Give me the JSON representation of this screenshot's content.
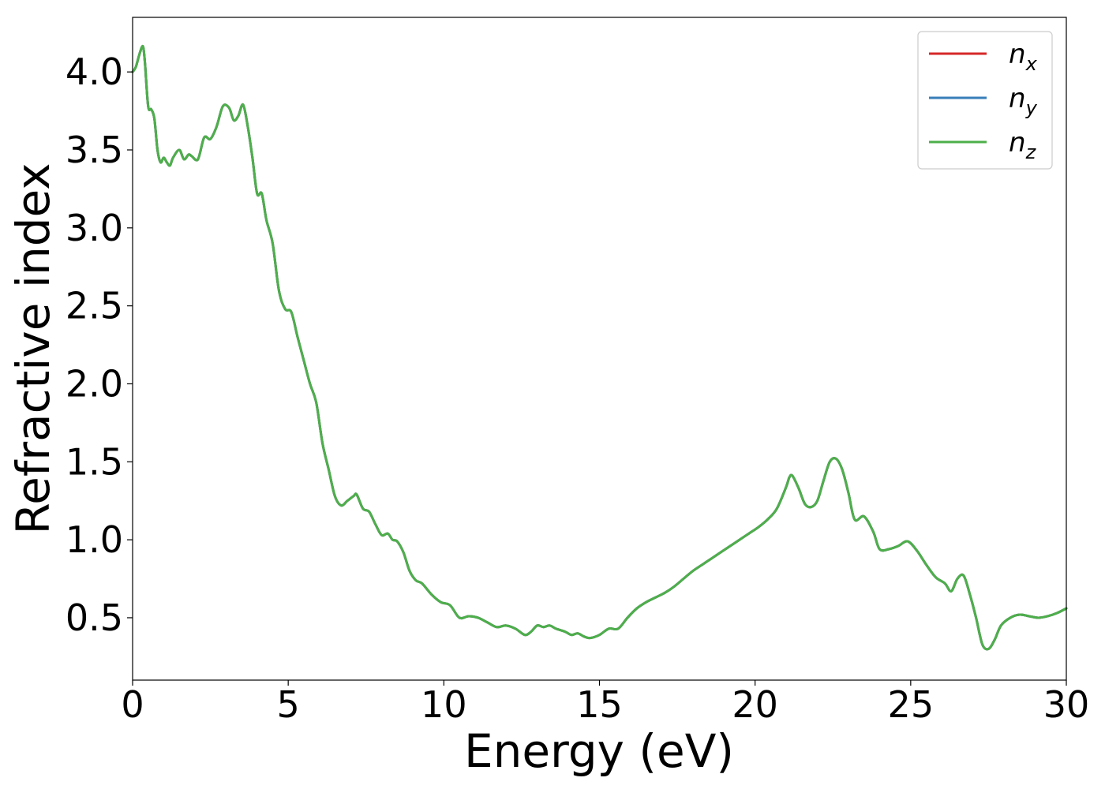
{
  "chart_data": {
    "type": "line",
    "title": "",
    "xlabel": "Energy (eV)",
    "ylabel": "Refractive index",
    "xlim": [
      0,
      30
    ],
    "ylim": [
      0.1,
      4.35
    ],
    "xticks": [
      0,
      5,
      10,
      15,
      20,
      25,
      30
    ],
    "xtick_labels": [
      "0",
      "5",
      "10",
      "15",
      "20",
      "25",
      "30"
    ],
    "yticks": [
      0.5,
      1.0,
      1.5,
      2.0,
      2.5,
      3.0,
      3.5,
      4.0
    ],
    "ytick_labels": [
      "0.5",
      "1.0",
      "1.5",
      "2.0",
      "2.5",
      "3.0",
      "3.5",
      "4.0"
    ],
    "grid": false,
    "legend_position": "top-right",
    "x": [
      0.0,
      0.1,
      0.2,
      0.3,
      0.35,
      0.4,
      0.5,
      0.6,
      0.7,
      0.8,
      0.9,
      1.0,
      1.1,
      1.2,
      1.3,
      1.5,
      1.65,
      1.8,
      1.9,
      2.1,
      2.3,
      2.5,
      2.7,
      2.9,
      3.1,
      3.25,
      3.4,
      3.55,
      3.7,
      3.85,
      4.0,
      4.15,
      4.3,
      4.5,
      4.7,
      4.9,
      5.1,
      5.3,
      5.5,
      5.7,
      5.9,
      6.1,
      6.3,
      6.5,
      6.7,
      6.9,
      7.1,
      7.2,
      7.4,
      7.6,
      7.8,
      8.0,
      8.2,
      8.35,
      8.5,
      8.7,
      8.9,
      9.1,
      9.3,
      9.6,
      9.9,
      10.2,
      10.5,
      10.8,
      11.1,
      11.4,
      11.7,
      12.0,
      12.3,
      12.6,
      12.8,
      13.0,
      13.2,
      13.4,
      13.6,
      13.9,
      14.1,
      14.3,
      14.5,
      14.7,
      15.0,
      15.3,
      15.6,
      15.9,
      16.2,
      16.5,
      16.8,
      17.1,
      17.4,
      17.7,
      18.0,
      18.3,
      18.6,
      18.9,
      19.2,
      19.5,
      19.8,
      20.1,
      20.4,
      20.7,
      21.0,
      21.1,
      21.2,
      21.4,
      21.6,
      21.8,
      22.0,
      22.2,
      22.4,
      22.6,
      22.8,
      23.0,
      23.2,
      23.5,
      23.8,
      24.0,
      24.3,
      24.6,
      24.9,
      25.2,
      25.5,
      25.8,
      26.1,
      26.3,
      26.5,
      26.7,
      26.9,
      27.1,
      27.3,
      27.5,
      27.7,
      27.9,
      28.2,
      28.5,
      28.8,
      29.1,
      29.4,
      29.7,
      30.0
    ],
    "series": [
      {
        "name": "n_x",
        "color": "#d62728",
        "values": [
          4.0,
          4.03,
          4.1,
          4.16,
          4.15,
          4.05,
          3.78,
          3.76,
          3.7,
          3.5,
          3.42,
          3.45,
          3.42,
          3.4,
          3.45,
          3.5,
          3.44,
          3.47,
          3.46,
          3.44,
          3.58,
          3.57,
          3.65,
          3.78,
          3.77,
          3.69,
          3.72,
          3.79,
          3.65,
          3.45,
          3.22,
          3.22,
          3.05,
          2.9,
          2.6,
          2.48,
          2.46,
          2.3,
          2.15,
          2.0,
          1.88,
          1.62,
          1.45,
          1.28,
          1.22,
          1.25,
          1.28,
          1.29,
          1.2,
          1.18,
          1.1,
          1.03,
          1.04,
          1.0,
          0.99,
          0.92,
          0.8,
          0.74,
          0.72,
          0.65,
          0.6,
          0.58,
          0.5,
          0.51,
          0.5,
          0.47,
          0.44,
          0.45,
          0.43,
          0.39,
          0.41,
          0.45,
          0.44,
          0.45,
          0.43,
          0.41,
          0.39,
          0.4,
          0.38,
          0.37,
          0.39,
          0.43,
          0.43,
          0.5,
          0.56,
          0.6,
          0.63,
          0.66,
          0.7,
          0.75,
          0.8,
          0.84,
          0.88,
          0.92,
          0.96,
          1.0,
          1.04,
          1.08,
          1.13,
          1.2,
          1.34,
          1.4,
          1.41,
          1.33,
          1.23,
          1.21,
          1.25,
          1.38,
          1.5,
          1.52,
          1.45,
          1.3,
          1.13,
          1.15,
          1.05,
          0.94,
          0.94,
          0.96,
          0.99,
          0.93,
          0.84,
          0.76,
          0.72,
          0.67,
          0.75,
          0.77,
          0.65,
          0.5,
          0.33,
          0.3,
          0.36,
          0.45,
          0.5,
          0.52,
          0.51,
          0.5,
          0.51,
          0.53,
          0.56
        ]
      },
      {
        "name": "n_y",
        "color": "#377eb8",
        "values": [
          4.0,
          4.03,
          4.1,
          4.16,
          4.15,
          4.05,
          3.78,
          3.76,
          3.7,
          3.5,
          3.42,
          3.45,
          3.42,
          3.4,
          3.45,
          3.5,
          3.44,
          3.47,
          3.46,
          3.44,
          3.58,
          3.57,
          3.65,
          3.78,
          3.77,
          3.69,
          3.72,
          3.79,
          3.65,
          3.45,
          3.22,
          3.22,
          3.05,
          2.9,
          2.6,
          2.48,
          2.46,
          2.3,
          2.15,
          2.0,
          1.88,
          1.62,
          1.45,
          1.28,
          1.22,
          1.25,
          1.28,
          1.29,
          1.2,
          1.18,
          1.1,
          1.03,
          1.04,
          1.0,
          0.99,
          0.92,
          0.8,
          0.74,
          0.72,
          0.65,
          0.6,
          0.58,
          0.5,
          0.51,
          0.5,
          0.47,
          0.44,
          0.45,
          0.43,
          0.39,
          0.41,
          0.45,
          0.44,
          0.45,
          0.43,
          0.41,
          0.39,
          0.4,
          0.38,
          0.37,
          0.39,
          0.43,
          0.43,
          0.5,
          0.56,
          0.6,
          0.63,
          0.66,
          0.7,
          0.75,
          0.8,
          0.84,
          0.88,
          0.92,
          0.96,
          1.0,
          1.04,
          1.08,
          1.13,
          1.2,
          1.34,
          1.4,
          1.41,
          1.33,
          1.23,
          1.21,
          1.25,
          1.38,
          1.5,
          1.52,
          1.45,
          1.3,
          1.13,
          1.15,
          1.05,
          0.94,
          0.94,
          0.96,
          0.99,
          0.93,
          0.84,
          0.76,
          0.72,
          0.67,
          0.75,
          0.77,
          0.65,
          0.5,
          0.33,
          0.3,
          0.36,
          0.45,
          0.5,
          0.52,
          0.51,
          0.5,
          0.51,
          0.53,
          0.56
        ]
      },
      {
        "name": "n_z",
        "color": "#4daf4a",
        "values": [
          4.0,
          4.03,
          4.1,
          4.16,
          4.15,
          4.05,
          3.78,
          3.76,
          3.7,
          3.5,
          3.42,
          3.45,
          3.42,
          3.4,
          3.45,
          3.5,
          3.44,
          3.47,
          3.46,
          3.44,
          3.58,
          3.57,
          3.65,
          3.78,
          3.77,
          3.69,
          3.72,
          3.79,
          3.65,
          3.45,
          3.22,
          3.22,
          3.05,
          2.9,
          2.6,
          2.48,
          2.46,
          2.3,
          2.15,
          2.0,
          1.88,
          1.62,
          1.45,
          1.28,
          1.22,
          1.25,
          1.28,
          1.29,
          1.2,
          1.18,
          1.1,
          1.03,
          1.04,
          1.0,
          0.99,
          0.92,
          0.8,
          0.74,
          0.72,
          0.65,
          0.6,
          0.58,
          0.5,
          0.51,
          0.5,
          0.47,
          0.44,
          0.45,
          0.43,
          0.39,
          0.41,
          0.45,
          0.44,
          0.45,
          0.43,
          0.41,
          0.39,
          0.4,
          0.38,
          0.37,
          0.39,
          0.43,
          0.43,
          0.5,
          0.56,
          0.6,
          0.63,
          0.66,
          0.7,
          0.75,
          0.8,
          0.84,
          0.88,
          0.92,
          0.96,
          1.0,
          1.04,
          1.08,
          1.13,
          1.2,
          1.34,
          1.4,
          1.41,
          1.33,
          1.23,
          1.21,
          1.25,
          1.38,
          1.5,
          1.52,
          1.45,
          1.3,
          1.13,
          1.15,
          1.05,
          0.94,
          0.94,
          0.96,
          0.99,
          0.93,
          0.84,
          0.76,
          0.72,
          0.67,
          0.75,
          0.77,
          0.65,
          0.5,
          0.33,
          0.3,
          0.36,
          0.45,
          0.5,
          0.52,
          0.51,
          0.5,
          0.51,
          0.53,
          0.56
        ]
      }
    ],
    "legend": [
      {
        "base": "n",
        "sub": "x",
        "color": "#d62728"
      },
      {
        "base": "n",
        "sub": "y",
        "color": "#377eb8"
      },
      {
        "base": "n",
        "sub": "z",
        "color": "#4daf4a"
      }
    ]
  }
}
